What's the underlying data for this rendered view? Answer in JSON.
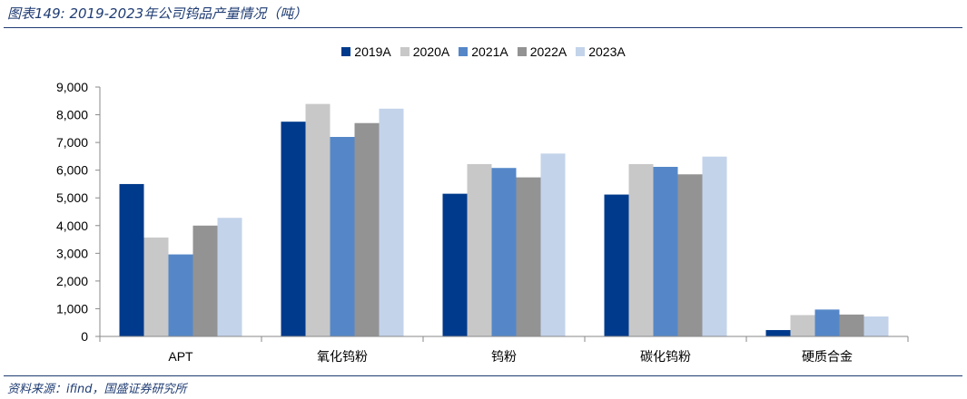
{
  "figure": {
    "title": "图表149:  2019-2023年公司钨品产量情况（吨）",
    "source": "资料来源：ifind，国盛证券研究所"
  },
  "chart_data": {
    "type": "bar",
    "title": "",
    "xlabel": "",
    "ylabel": "",
    "ylim": [
      0,
      9000
    ],
    "yticks": [
      0,
      1000,
      2000,
      3000,
      4000,
      5000,
      6000,
      7000,
      8000,
      9000
    ],
    "ytick_labels": [
      "0",
      "1,000",
      "2,000",
      "3,000",
      "4,000",
      "5,000",
      "6,000",
      "7,000",
      "8,000",
      "9,000"
    ],
    "grid": false,
    "legend_position": "top-center",
    "categories": [
      "APT",
      "氧化钨粉",
      "钨粉",
      "碳化钨粉",
      "硬质合金"
    ],
    "series": [
      {
        "name": "2019A",
        "color": "#003a8c",
        "values": [
          5500,
          7750,
          5150,
          5120,
          230
        ]
      },
      {
        "name": "2020A",
        "color": "#c8c8c8",
        "values": [
          3570,
          8390,
          6220,
          6220,
          770
        ]
      },
      {
        "name": "2021A",
        "color": "#5587c8",
        "values": [
          2960,
          7200,
          6080,
          6120,
          970
        ]
      },
      {
        "name": "2022A",
        "color": "#939393",
        "values": [
          4000,
          7700,
          5740,
          5850,
          790
        ]
      },
      {
        "name": "2023A",
        "color": "#c3d3ea",
        "values": [
          4280,
          8220,
          6600,
          6490,
          720
        ]
      }
    ]
  }
}
